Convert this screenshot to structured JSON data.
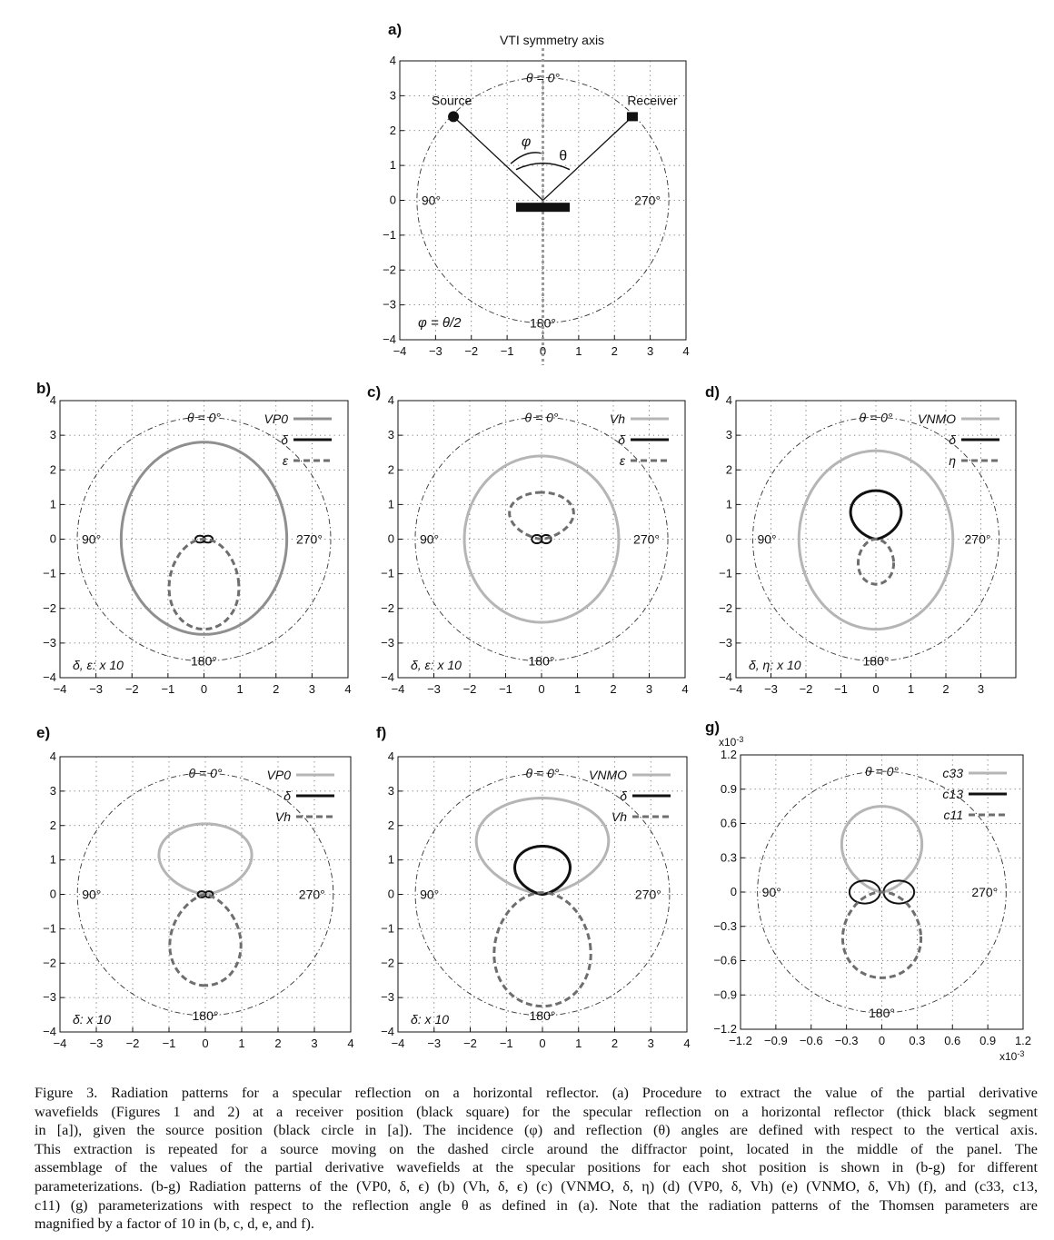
{
  "chart_data": [
    {
      "panel": "a)",
      "type": "diagram",
      "title": "VTI symmetry axis",
      "xlim": [
        -4,
        4
      ],
      "ylim": [
        -4,
        4
      ],
      "x_ticks": [
        "−4",
        "−3",
        "−2",
        "−1",
        "0",
        "1",
        "2",
        "3",
        "4"
      ],
      "y_ticks": [
        "4",
        "3",
        "2",
        "1",
        "0",
        "−1",
        "−2",
        "−3",
        "−4"
      ],
      "angle_labels": {
        "top": "θ = 0°",
        "left": "90°",
        "right": "270°",
        "bottom": "180°"
      },
      "labels": {
        "source": "Source",
        "receiver": "Receiver",
        "phi": "φ",
        "theta": "θ",
        "relation": "φ = θ/2"
      },
      "source_point": [
        -2.5,
        2.4
      ],
      "receiver_point": [
        2.5,
        2.4
      ],
      "diffractor_point": [
        0,
        0
      ],
      "reflector": [
        [
          -0.75,
          -0.2
        ],
        [
          0.75,
          -0.2
        ]
      ],
      "circle_radius": 3.5
    },
    {
      "panel": "b)",
      "type": "polar-line",
      "xlim": [
        -4,
        4
      ],
      "ylim": [
        -4,
        4
      ],
      "x_ticks": [
        "−4",
        "−3",
        "−2",
        "−1",
        "0",
        "1",
        "2",
        "3",
        "4"
      ],
      "y_ticks": [
        "4",
        "3",
        "2",
        "1",
        "0",
        "−1",
        "−2",
        "−3",
        "−4"
      ],
      "angle_labels": {
        "top": "θ = 0°",
        "left": "90°",
        "right": "270°",
        "bottom": "180°"
      },
      "scale_note": "δ, ε: x 10",
      "legend": [
        "VP0",
        "δ",
        "ε"
      ],
      "series": [
        {
          "name": "VP0",
          "color": "#8f8f8f",
          "style": "solid",
          "shape": "ellipse",
          "params": {
            "cx": 0,
            "cy": 0,
            "a": 2.3,
            "top": 2.8,
            "bottom": -2.75
          }
        },
        {
          "name": "δ",
          "color": "#111111",
          "style": "solid",
          "shape": "lobes",
          "params": {
            "cx": 0,
            "cy": 0,
            "lobe_w": 0.13,
            "lobe_h": 0.1,
            "spread": 0.11
          }
        },
        {
          "name": "ε",
          "color": "#6e6e6e",
          "style": "dashed",
          "shape": "egg",
          "params": {
            "cx": 0,
            "cy": -1.3,
            "a": 1.05,
            "top": 0,
            "bottom": -2.6
          }
        }
      ]
    },
    {
      "panel": "c)",
      "type": "polar-line",
      "xlim": [
        -4,
        4
      ],
      "ylim": [
        -4,
        4
      ],
      "x_ticks": [
        "−4",
        "−3",
        "−2",
        "−1",
        "0",
        "1",
        "2",
        "3",
        "4"
      ],
      "y_ticks": [
        "4",
        "3",
        "2",
        "1",
        "0",
        "−1",
        "−2",
        "−3",
        "−4"
      ],
      "angle_labels": {
        "top": "θ = 0°",
        "left": "90°",
        "right": "270°",
        "bottom": "180°"
      },
      "scale_note": "δ, ε: x 10",
      "legend": [
        "Vh",
        "δ",
        "ε"
      ],
      "series": [
        {
          "name": "Vh",
          "color": "#b5b5b5",
          "style": "solid",
          "shape": "ellipse",
          "params": {
            "cx": 0,
            "cy": 0,
            "a": 2.15,
            "top": 2.4,
            "bottom": -2.4
          }
        },
        {
          "name": "δ",
          "color": "#111111",
          "style": "solid",
          "shape": "lobes",
          "params": {
            "cx": 0,
            "cy": 0,
            "lobe_w": 0.14,
            "lobe_h": 0.12,
            "spread": 0.13
          }
        },
        {
          "name": "ε",
          "color": "#6e6e6e",
          "style": "dashed",
          "shape": "cardioid-up",
          "params": {
            "cx": 0,
            "cy": 0,
            "a": 1.05,
            "top": 1.35
          }
        }
      ]
    },
    {
      "panel": "d)",
      "type": "polar-line",
      "xlim": [
        -4,
        4
      ],
      "ylim": [
        -4,
        4
      ],
      "x_ticks": [
        "−4",
        "−3",
        "−2",
        "−1",
        "0",
        "1",
        "2",
        "3"
      ],
      "y_ticks": [
        "4",
        "3",
        "2",
        "1",
        "0",
        "−1",
        "−2",
        "−3",
        "−4"
      ],
      "angle_labels": {
        "top": "θ = 0°",
        "left": "90°",
        "right": "270°",
        "bottom": "180°"
      },
      "scale_note": "δ, η: x 10",
      "legend": [
        "VNMO",
        "δ",
        "η"
      ],
      "series": [
        {
          "name": "VNMO",
          "color": "#b5b5b5",
          "style": "solid",
          "shape": "ellipse",
          "params": {
            "cx": 0,
            "cy": 0,
            "a": 2.2,
            "top": 2.55,
            "bottom": -2.6
          }
        },
        {
          "name": "δ",
          "color": "#111111",
          "style": "solid",
          "shape": "cardioid-up",
          "params": {
            "cx": 0,
            "cy": 0,
            "a": 0.85,
            "top": 1.4
          }
        },
        {
          "name": "η",
          "color": "#6e6e6e",
          "style": "dashed",
          "shape": "egg",
          "params": {
            "cx": 0,
            "cy": -0.65,
            "a": 0.55,
            "top": 0,
            "bottom": -1.3
          }
        }
      ]
    },
    {
      "panel": "e)",
      "type": "polar-line",
      "xlim": [
        -4,
        4
      ],
      "ylim": [
        -4,
        4
      ],
      "x_ticks": [
        "−4",
        "−3",
        "−2",
        "−1",
        "0",
        "1",
        "2",
        "3",
        "4"
      ],
      "y_ticks": [
        "4",
        "3",
        "2",
        "1",
        "0",
        "−1",
        "−2",
        "−3",
        "−4"
      ],
      "angle_labels": {
        "top": "θ = 0°",
        "left": "90°",
        "right": "270°",
        "bottom": "180°"
      },
      "scale_note": "δ: x 10",
      "legend": [
        "VP0",
        "δ",
        "Vh"
      ],
      "series": [
        {
          "name": "VP0",
          "color": "#b5b5b5",
          "style": "solid",
          "shape": "cardioid-up",
          "params": {
            "cx": 0,
            "cy": 0,
            "a": 1.5,
            "top": 2.05
          }
        },
        {
          "name": "δ",
          "color": "#111111",
          "style": "solid",
          "shape": "lobes",
          "params": {
            "cx": 0,
            "cy": 0,
            "lobe_w": 0.11,
            "lobe_h": 0.09,
            "spread": 0.1
          }
        },
        {
          "name": "Vh",
          "color": "#6e6e6e",
          "style": "dashed",
          "shape": "cardioid-down",
          "params": {
            "cx": 0,
            "cy": 0,
            "a": 1.15,
            "bottom": -2.65
          }
        }
      ]
    },
    {
      "panel": "f)",
      "type": "polar-line",
      "xlim": [
        -4,
        4
      ],
      "ylim": [
        -4,
        4
      ],
      "x_ticks": [
        "−4",
        "−3",
        "−2",
        "−1",
        "0",
        "1",
        "2",
        "3",
        "4"
      ],
      "y_ticks": [
        "4",
        "3",
        "2",
        "1",
        "0",
        "−1",
        "−2",
        "−3",
        "−4"
      ],
      "angle_labels": {
        "top": "θ = 0°",
        "left": "90°",
        "right": "270°",
        "bottom": "180°"
      },
      "scale_note": "δ: x 10",
      "legend": [
        "VNMO",
        "δ",
        "Vh"
      ],
      "series": [
        {
          "name": "VNMO",
          "color": "#b5b5b5",
          "style": "solid",
          "shape": "cardioid-up",
          "params": {
            "cx": 0,
            "cy": 0,
            "a": 2.15,
            "top": 2.8
          }
        },
        {
          "name": "δ",
          "color": "#111111",
          "style": "solid",
          "shape": "cardioid-up",
          "params": {
            "cx": 0,
            "cy": 0,
            "a": 0.9,
            "top": 1.4
          }
        },
        {
          "name": "Vh",
          "color": "#6e6e6e",
          "style": "dashed",
          "shape": "egg",
          "params": {
            "cx": 0,
            "cy": -1.6,
            "a": 1.45,
            "top": 0.05,
            "bottom": -3.25
          }
        }
      ]
    },
    {
      "panel": "g)",
      "type": "polar-line",
      "xlim": [
        -1.2,
        1.2
      ],
      "ylim": [
        -1.2,
        1.2
      ],
      "x_ticks": [
        "−1.2",
        "−0.9",
        "−0.6",
        "−0.3",
        "0",
        "0.3",
        "0.6",
        "0.9",
        "1.2"
      ],
      "y_ticks": [
        "1.2",
        "0.9",
        "0.6",
        "0.3",
        "0",
        "−0.3",
        "−0.6",
        "−0.9",
        "−1.2"
      ],
      "axis_exponent": "x10",
      "axis_exponent_power": "-3",
      "angle_labels": {
        "top": "θ = 0°",
        "left": "90°",
        "right": "270°",
        "bottom": "180°"
      },
      "legend": [
        "c33",
        "c13",
        "c11"
      ],
      "series": [
        {
          "name": "c33",
          "color": "#b5b5b5",
          "style": "solid",
          "shape": "cardioid-up",
          "params": {
            "cx": 0,
            "cy": 0,
            "a": 0.4,
            "top": 0.75
          }
        },
        {
          "name": "c13",
          "color": "#111111",
          "style": "solid",
          "shape": "lobes",
          "params": {
            "cx": 0,
            "cy": 0,
            "lobe_w": 0.13,
            "lobe_h": 0.1,
            "spread": 0.145
          }
        },
        {
          "name": "c11",
          "color": "#6e6e6e",
          "style": "dashed",
          "shape": "egg",
          "params": {
            "cx": 0,
            "cy": -0.37,
            "a": 0.36,
            "top": 0,
            "bottom": -0.75
          }
        }
      ]
    }
  ],
  "caption": {
    "lines": [
      "Figure 3. Radiation patterns for a specular reflection on a horizontal reflector. (a) Procedure to extract the value of the partial derivative",
      "wavefields (Figures 1 and 2) at a receiver position (black square) for the specular reflection on a horizontal reflector (thick black segment",
      "in [a]), given the source position (black circle in [a]). The incidence (φ) and reflection (θ) angles are defined with respect to the vertical axis.",
      "This extraction is repeated for a source moving on the dashed circle around the diffractor point, located in the middle of the panel. The",
      "assemblage of the values of the partial derivative wavefields at the specular positions for each shot position is shown in (b-g) for different",
      "parameterizations. (b-g) Radiation patterns of the (VP0, δ, ϵ) (b) (Vh, δ, ϵ) (c) (VNMO, δ, η) (d) (VP0, δ, Vh) (e) (VNMO, δ, Vh) (f), and (c33, c13,",
      "c11) (g) parameterizations with respect to the reflection angle θ as defined in (a). Note that the radiation patterns of the Thomsen parameters are",
      "magnified by a factor of 10 in (b, c, d, e, and f)."
    ]
  }
}
